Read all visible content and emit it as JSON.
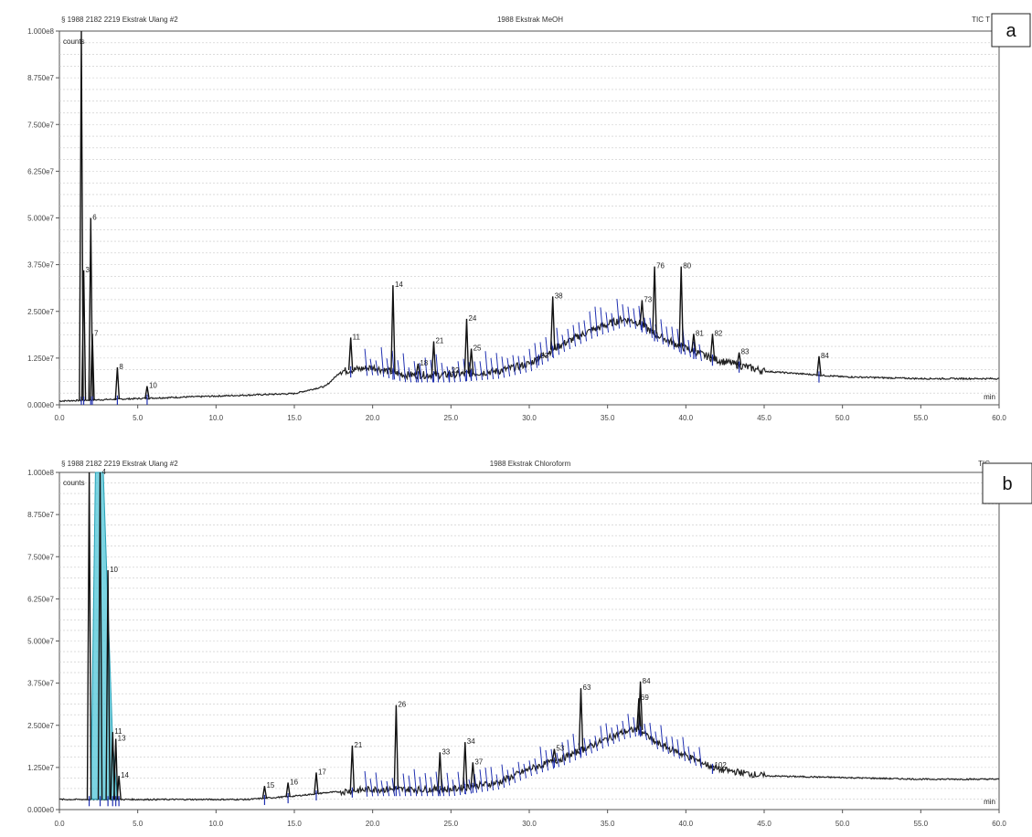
{
  "chart_data": [
    {
      "type": "line",
      "panel_label": "a",
      "header_left": "§ 1988 2182 2219 Ekstrak Ulang #2",
      "header_center": "1988 Ekstrak MeOH",
      "header_right": "TIC T",
      "y_unit": "counts",
      "x_unit": "min",
      "xlim": [
        0,
        60
      ],
      "ylim": [
        0,
        100000000.0
      ],
      "x_tick_labels": [
        "0.0",
        "5.0",
        "10.0",
        "15.0",
        "20.0",
        "25.0",
        "30.0",
        "35.0",
        "40.0",
        "45.0",
        "50.0",
        "55.0",
        "60.0"
      ],
      "y_tick_labels": [
        "0.000e0",
        "1.250e7",
        "2.500e7",
        "3.750e7",
        "5.000e7",
        "6.250e7",
        "7.500e7",
        "8.750e7",
        "1.000e8"
      ],
      "grid": true,
      "baseline": [
        [
          0,
          0.01
        ],
        [
          15,
          0.03
        ],
        [
          17,
          0.05
        ],
        [
          18,
          0.09
        ],
        [
          20,
          0.1
        ],
        [
          22,
          0.08
        ],
        [
          25,
          0.08
        ],
        [
          28,
          0.09
        ],
        [
          30,
          0.11
        ],
        [
          32,
          0.16
        ],
        [
          34,
          0.2
        ],
        [
          36,
          0.23
        ],
        [
          37,
          0.22
        ],
        [
          38,
          0.19
        ],
        [
          40,
          0.15
        ],
        [
          42,
          0.12
        ],
        [
          45,
          0.09
        ],
        [
          50,
          0.075
        ],
        [
          55,
          0.07
        ],
        [
          60,
          0.07
        ]
      ],
      "peaks": [
        {
          "label": "",
          "x": 1.4,
          "y": 1.0
        },
        {
          "label": "3",
          "x": 1.55,
          "y": 0.36
        },
        {
          "label": "6",
          "x": 2.0,
          "y": 0.5
        },
        {
          "label": "7",
          "x": 2.1,
          "y": 0.19
        },
        {
          "label": "8",
          "x": 3.7,
          "y": 0.1
        },
        {
          "label": "10",
          "x": 5.6,
          "y": 0.05
        },
        {
          "label": "11",
          "x": 18.6,
          "y": 0.18
        },
        {
          "label": "14",
          "x": 21.3,
          "y": 0.32
        },
        {
          "label": "18",
          "x": 22.9,
          "y": 0.11
        },
        {
          "label": "21",
          "x": 23.9,
          "y": 0.17
        },
        {
          "label": "22",
          "x": 24.9,
          "y": 0.09
        },
        {
          "label": "24",
          "x": 26.0,
          "y": 0.23
        },
        {
          "label": "25",
          "x": 26.3,
          "y": 0.15
        },
        {
          "label": "33",
          "x": 30.6,
          "y": 0.13
        },
        {
          "label": "38",
          "x": 31.5,
          "y": 0.29
        },
        {
          "label": "73",
          "x": 37.2,
          "y": 0.28
        },
        {
          "label": "76",
          "x": 38.0,
          "y": 0.37
        },
        {
          "label": "80",
          "x": 39.7,
          "y": 0.37
        },
        {
          "label": "81",
          "x": 40.5,
          "y": 0.19
        },
        {
          "label": "82",
          "x": 41.7,
          "y": 0.19
        },
        {
          "label": "83",
          "x": 43.4,
          "y": 0.14
        },
        {
          "label": "84",
          "x": 48.5,
          "y": 0.13
        }
      ]
    },
    {
      "type": "line",
      "panel_label": "b",
      "header_left": "§ 1988 2182 2219 Ekstrak Ulang #2",
      "header_center": "1988 Ekstrak Chloroform",
      "header_right": "TIC",
      "y_unit": "counts",
      "x_unit": "min",
      "xlim": [
        0,
        60
      ],
      "ylim": [
        0,
        100000000.0
      ],
      "x_tick_labels": [
        "0.0",
        "5.0",
        "10.0",
        "15.0",
        "20.0",
        "25.0",
        "30.0",
        "35.0",
        "40.0",
        "45.0",
        "50.0",
        "55.0",
        "60.0"
      ],
      "y_tick_labels": [
        "0.000e0",
        "1.250e7",
        "2.500e7",
        "3.750e7",
        "5.000e7",
        "6.250e7",
        "7.500e7",
        "8.750e7",
        "1.000e8"
      ],
      "grid": true,
      "baseline": [
        [
          0,
          0.03
        ],
        [
          12,
          0.03
        ],
        [
          15,
          0.04
        ],
        [
          17,
          0.05
        ],
        [
          20,
          0.06
        ],
        [
          22,
          0.06
        ],
        [
          25,
          0.06
        ],
        [
          28,
          0.08
        ],
        [
          30,
          0.12
        ],
        [
          32,
          0.15
        ],
        [
          34,
          0.19
        ],
        [
          36,
          0.23
        ],
        [
          37,
          0.24
        ],
        [
          38,
          0.2
        ],
        [
          40,
          0.16
        ],
        [
          42,
          0.12
        ],
        [
          45,
          0.1
        ],
        [
          50,
          0.095
        ],
        [
          55,
          0.09
        ],
        [
          60,
          0.09
        ]
      ],
      "peaks": [
        {
          "label": "",
          "x": 1.9,
          "y": 1.0
        },
        {
          "label": "4",
          "x": 2.6,
          "y": 1.0
        },
        {
          "label": "10",
          "x": 3.1,
          "y": 0.71
        },
        {
          "label": "11",
          "x": 3.4,
          "y": 0.23
        },
        {
          "label": "13",
          "x": 3.6,
          "y": 0.21
        },
        {
          "label": "14",
          "x": 3.8,
          "y": 0.1
        },
        {
          "label": "15",
          "x": 13.1,
          "y": 0.07
        },
        {
          "label": "16",
          "x": 14.6,
          "y": 0.08
        },
        {
          "label": "17",
          "x": 16.4,
          "y": 0.11
        },
        {
          "label": "21",
          "x": 18.7,
          "y": 0.19
        },
        {
          "label": "26",
          "x": 21.5,
          "y": 0.31
        },
        {
          "label": "33",
          "x": 24.3,
          "y": 0.17
        },
        {
          "label": "34",
          "x": 25.9,
          "y": 0.2
        },
        {
          "label": "37",
          "x": 26.4,
          "y": 0.14
        },
        {
          "label": "53",
          "x": 31.6,
          "y": 0.18
        },
        {
          "label": "63",
          "x": 33.3,
          "y": 0.36
        },
        {
          "label": "69",
          "x": 37.0,
          "y": 0.33
        },
        {
          "label": "84",
          "x": 37.1,
          "y": 0.38
        },
        {
          "label": "102",
          "x": 41.7,
          "y": 0.13
        }
      ]
    }
  ]
}
